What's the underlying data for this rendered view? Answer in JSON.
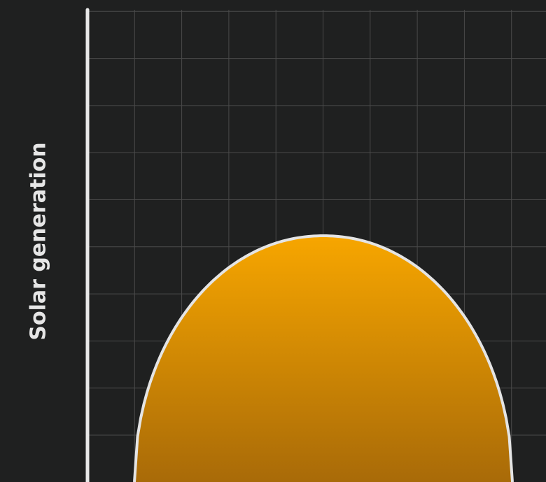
{
  "chart_data": {
    "type": "area",
    "title": "",
    "xlabel": "",
    "ylabel": "Solar generation",
    "grid": true,
    "series": [
      {
        "x": [
          0.0,
          0.05,
          0.1,
          0.15,
          0.2,
          0.25,
          0.3,
          0.35,
          0.4,
          0.45,
          0.5,
          0.55,
          0.6,
          0.65,
          0.7,
          0.75,
          0.8,
          0.85,
          0.9,
          0.95,
          1.0
        ],
        "values": [
          0.0,
          0.17,
          0.35,
          0.5,
          0.62,
          0.72,
          0.8,
          0.86,
          0.9,
          0.92,
          0.92,
          0.9,
          0.86,
          0.8,
          0.72,
          0.62,
          0.5,
          0.35,
          0.17,
          0.0,
          0.0
        ]
      }
    ],
    "colors": {
      "background": "#1f2020",
      "grid": "#4a4a4a",
      "axis": "#e8e8e8",
      "fill_top": "#f7a600",
      "fill_bottom": "#a86a08",
      "outline": "#e4e4e4"
    }
  }
}
